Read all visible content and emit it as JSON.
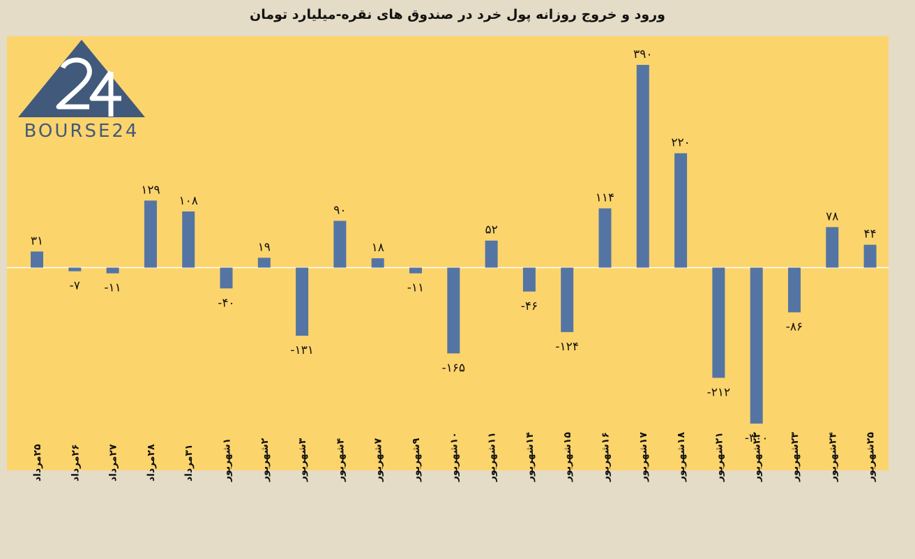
{
  "title": "ورود و خروج روزانه پول خرد در صندوق های نقره-میلیارد تومان",
  "logo": {
    "text": "BOURSE24",
    "mark": "24"
  },
  "colors": {
    "plot_bg": "#fcd46c",
    "bar": "#5475a3",
    "page_bg": "#e4dcc6"
  },
  "chart_data": {
    "type": "bar",
    "title": "ورود و خروج روزانه پول خرد در صندوق های نقره-میلیارد تومان",
    "categories": [
      "۲۵مرداد",
      "۲۶مرداد",
      "۲۷مرداد",
      "۲۸مرداد",
      "۳۱مرداد",
      "۱شهریور",
      "۲شهریور",
      "۳شهریور",
      "۴شهریور",
      "۷شهریور",
      "۹شهریور",
      "۱۰شهریور",
      "۱۱شهریور",
      "۱۴شهریور",
      "۱۵شهریور",
      "۱۶شهریور",
      "۱۷شهریور",
      "۱۸شهریور",
      "۲۱شهریور",
      "۲۲شهریور",
      "۲۳شهریور",
      "۲۴شهریور",
      "۲۵شهریور"
    ],
    "values": [
      31,
      -7,
      -11,
      129,
      108,
      -40,
      19,
      -131,
      90,
      18,
      -11,
      -165,
      52,
      -46,
      -124,
      114,
      390,
      220,
      -212,
      -300,
      -86,
      78,
      44
    ],
    "data_labels": [
      "۳۱",
      "-۷",
      "-۱۱",
      "۱۲۹",
      "۱۰۸",
      "-۴۰",
      "۱۹",
      "-۱۳۱",
      "۹۰",
      "۱۸",
      "-۱۱",
      "-۱۶۵",
      "۵۲",
      "-۴۶",
      "-۱۲۴",
      "۱۱۴",
      "۳۹۰",
      "۲۲۰",
      "-۲۱۲",
      "-۳۰۰",
      "-۸۶",
      "۷۸",
      "۴۴"
    ],
    "ylim": [
      -390,
      445
    ],
    "grid": false,
    "legend": "none",
    "xlabel": "",
    "ylabel": ""
  }
}
